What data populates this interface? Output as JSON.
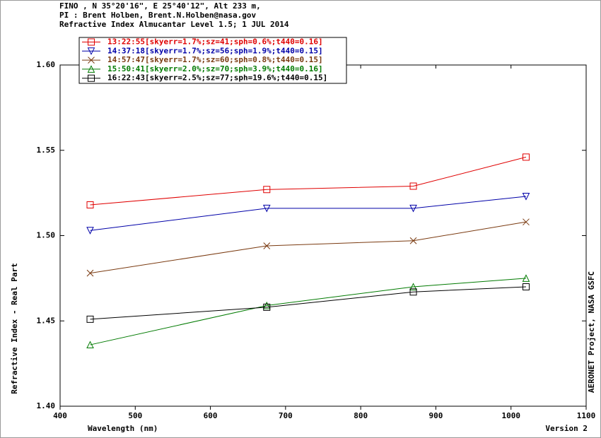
{
  "chart_data": {
    "type": "line",
    "header": [
      "FINO , N 35°20'16\", E 25°40'12\", Alt 233 m,",
      "PI : Brent Holben, Brent.N.Holben@nasa.gov",
      "Refractive Index Almucantar Level 1.5; 1 JUL 2014"
    ],
    "x_label": "Wavelength (nm)",
    "y_label": "Refractive Index - Real Part",
    "right_label": "AERONET Project, NASA GSFC",
    "version": "Version 2",
    "x": [
      440,
      675,
      870,
      1020
    ],
    "xlim": [
      400,
      1100
    ],
    "xticks": [
      400,
      500,
      600,
      700,
      800,
      900,
      1000,
      1100
    ],
    "ylim": [
      1.4,
      1.6
    ],
    "yticks": [
      {
        "value": 1.4,
        "label": "1.40"
      },
      1.45,
      {
        "value": 1.5,
        "label": "1.50"
      },
      1.55,
      {
        "value": 1.6,
        "label": "1.60"
      }
    ],
    "series": [
      {
        "name": "13:22:55[skyerr=1.7%;sz=41;sph=0.6%;t440=0.16]",
        "color": "#e00000",
        "marker": "square",
        "values": [
          1.518,
          1.527,
          1.529,
          1.546
        ]
      },
      {
        "name": "14:37:18[skyerr=1.7%;sz=56;sph=1.9%;t440=0.15]",
        "color": "#0000a8",
        "marker": "triangle-down",
        "values": [
          1.503,
          1.516,
          1.516,
          1.523
        ]
      },
      {
        "name": "14:57:47[skyerr=1.7%;sz=60;sph=0.8%;t440=0.15]",
        "color": "#7a3a10",
        "marker": "x",
        "values": [
          1.478,
          1.494,
          1.497,
          1.508
        ]
      },
      {
        "name": "15:50:41[skyerr=2.0%;sz=70;sph=3.9%;t440=0.16]",
        "color": "#007a00",
        "marker": "triangle-up",
        "values": [
          1.436,
          1.459,
          1.47,
          1.475
        ]
      },
      {
        "name": "16:22:43[skyerr=2.5%;sz=77;sph=19.6%;t440=0.15]",
        "color": "#000000",
        "marker": "square",
        "values": [
          1.451,
          1.458,
          1.467,
          1.47
        ]
      }
    ]
  }
}
